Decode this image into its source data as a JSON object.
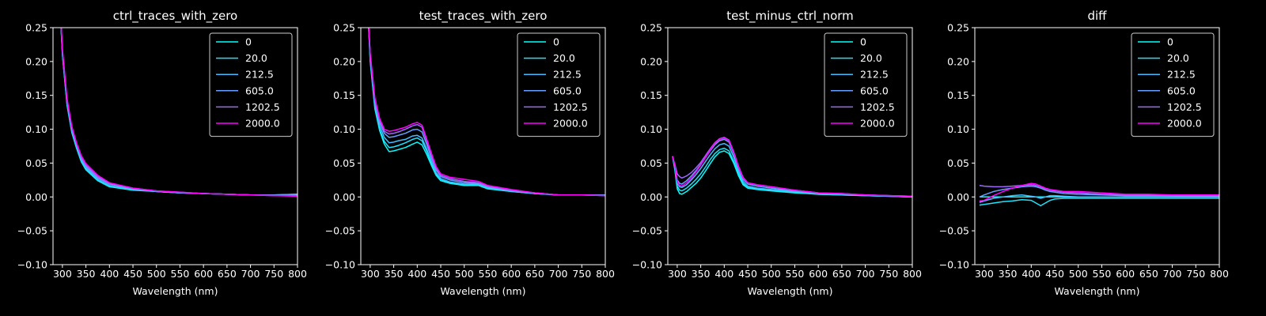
{
  "figure": {
    "background": "#000000",
    "foreground": "#ffffff"
  },
  "chart_data": [
    {
      "type": "line",
      "title": "ctrl_traces_with_zero",
      "xlabel": "Wavelength (nm)",
      "ylabel": "",
      "xlim": [
        280,
        800
      ],
      "ylim": [
        -0.1,
        0.25
      ],
      "xticks": [
        300,
        350,
        400,
        450,
        500,
        550,
        600,
        650,
        700,
        750,
        800
      ],
      "yticks": [
        -0.1,
        -0.05,
        0.0,
        0.05,
        0.1,
        0.15,
        0.2,
        0.25
      ],
      "ytick_labels": [
        "−0.10",
        "−0.05",
        "0.00",
        "0.05",
        "0.10",
        "0.15",
        "0.20",
        "0.25"
      ],
      "legend_position": "top-right",
      "grid": false,
      "x": [
        290,
        300,
        310,
        320,
        330,
        340,
        350,
        375,
        400,
        450,
        500,
        550,
        600,
        650,
        700,
        750,
        800
      ],
      "series": [
        {
          "name": "0",
          "color": "#00ffff",
          "values": [
            0.35,
            0.21,
            0.135,
            0.095,
            0.072,
            0.052,
            0.04,
            0.024,
            0.015,
            0.01,
            0.008,
            0.006,
            0.005,
            0.004,
            0.003,
            0.003,
            0.004
          ]
        },
        {
          "name": "20.0",
          "color": "#1ae5ff",
          "values": [
            0.35,
            0.21,
            0.136,
            0.096,
            0.073,
            0.053,
            0.041,
            0.025,
            0.016,
            0.011,
            0.008,
            0.006,
            0.005,
            0.004,
            0.003,
            0.003,
            0.004
          ]
        },
        {
          "name": "212.5",
          "color": "#44bbff",
          "values": [
            0.35,
            0.212,
            0.138,
            0.098,
            0.075,
            0.055,
            0.043,
            0.026,
            0.017,
            0.011,
            0.008,
            0.006,
            0.005,
            0.004,
            0.003,
            0.003,
            0.003
          ]
        },
        {
          "name": "605.0",
          "color": "#66a0ff",
          "values": [
            0.35,
            0.214,
            0.14,
            0.1,
            0.077,
            0.057,
            0.045,
            0.028,
            0.019,
            0.012,
            0.009,
            0.006,
            0.005,
            0.004,
            0.003,
            0.003,
            0.003
          ]
        },
        {
          "name": "1202.5",
          "color": "#a066ff",
          "values": [
            0.35,
            0.216,
            0.142,
            0.102,
            0.079,
            0.059,
            0.047,
            0.03,
            0.02,
            0.013,
            0.009,
            0.007,
            0.005,
            0.004,
            0.003,
            0.002,
            0.002
          ]
        },
        {
          "name": "2000.0",
          "color": "#ff00ff",
          "values": [
            0.35,
            0.218,
            0.145,
            0.104,
            0.08,
            0.061,
            0.049,
            0.032,
            0.021,
            0.013,
            0.009,
            0.007,
            0.005,
            0.004,
            0.003,
            0.002,
            0.001
          ]
        }
      ]
    },
    {
      "type": "line",
      "title": "test_traces_with_zero",
      "xlabel": "Wavelength (nm)",
      "ylabel": "",
      "xlim": [
        280,
        800
      ],
      "ylim": [
        -0.1,
        0.25
      ],
      "xticks": [
        300,
        350,
        400,
        450,
        500,
        550,
        600,
        650,
        700,
        750,
        800
      ],
      "yticks": [
        -0.1,
        -0.05,
        0.0,
        0.05,
        0.1,
        0.15,
        0.2,
        0.25
      ],
      "ytick_labels": [
        "−0.10",
        "−0.05",
        "0.00",
        "0.05",
        "0.10",
        "0.15",
        "0.20",
        "0.25"
      ],
      "legend_position": "top-right",
      "grid": false,
      "x": [
        290,
        300,
        310,
        320,
        330,
        340,
        350,
        360,
        375,
        390,
        400,
        410,
        420,
        430,
        440,
        450,
        470,
        500,
        530,
        550,
        600,
        650,
        700,
        750,
        800
      ],
      "series": [
        {
          "name": "0",
          "color": "#00ffff",
          "values": [
            0.35,
            0.2,
            0.13,
            0.098,
            0.078,
            0.067,
            0.068,
            0.07,
            0.073,
            0.078,
            0.081,
            0.077,
            0.063,
            0.047,
            0.032,
            0.024,
            0.02,
            0.017,
            0.017,
            0.012,
            0.008,
            0.005,
            0.003,
            0.003,
            0.003
          ]
        },
        {
          "name": "20.0",
          "color": "#1ae5ff",
          "values": [
            0.35,
            0.202,
            0.132,
            0.1,
            0.082,
            0.073,
            0.074,
            0.076,
            0.08,
            0.085,
            0.087,
            0.083,
            0.068,
            0.05,
            0.034,
            0.025,
            0.021,
            0.018,
            0.018,
            0.013,
            0.008,
            0.005,
            0.003,
            0.003,
            0.003
          ]
        },
        {
          "name": "212.5",
          "color": "#44bbff",
          "values": [
            0.35,
            0.205,
            0.135,
            0.105,
            0.088,
            0.08,
            0.081,
            0.083,
            0.085,
            0.09,
            0.091,
            0.087,
            0.071,
            0.053,
            0.036,
            0.027,
            0.022,
            0.019,
            0.019,
            0.014,
            0.009,
            0.005,
            0.003,
            0.003,
            0.003
          ]
        },
        {
          "name": "605.0",
          "color": "#66a0ff",
          "values": [
            0.35,
            0.208,
            0.14,
            0.11,
            0.094,
            0.088,
            0.089,
            0.091,
            0.094,
            0.099,
            0.1,
            0.096,
            0.078,
            0.058,
            0.04,
            0.03,
            0.025,
            0.021,
            0.02,
            0.015,
            0.009,
            0.006,
            0.003,
            0.003,
            0.002
          ]
        },
        {
          "name": "1202.5",
          "color": "#a066ff",
          "values": [
            0.35,
            0.21,
            0.143,
            0.113,
            0.097,
            0.093,
            0.094,
            0.096,
            0.1,
            0.105,
            0.107,
            0.103,
            0.083,
            0.062,
            0.043,
            0.032,
            0.027,
            0.023,
            0.021,
            0.016,
            0.01,
            0.006,
            0.003,
            0.003,
            0.002
          ]
        },
        {
          "name": "2000.0",
          "color": "#ff00ff",
          "values": [
            0.35,
            0.212,
            0.146,
            0.116,
            0.1,
            0.097,
            0.098,
            0.1,
            0.103,
            0.108,
            0.11,
            0.106,
            0.086,
            0.065,
            0.045,
            0.034,
            0.029,
            0.026,
            0.023,
            0.017,
            0.011,
            0.006,
            0.003,
            0.003,
            0.002
          ]
        }
      ]
    },
    {
      "type": "line",
      "title": "test_minus_ctrl_norm",
      "xlabel": "Wavelength (nm)",
      "ylabel": "",
      "xlim": [
        280,
        800
      ],
      "ylim": [
        -0.1,
        0.25
      ],
      "xticks": [
        300,
        350,
        400,
        450,
        500,
        550,
        600,
        650,
        700,
        750,
        800
      ],
      "yticks": [
        -0.1,
        -0.05,
        0.0,
        0.05,
        0.1,
        0.15,
        0.2,
        0.25
      ],
      "ytick_labels": [
        "−0.10",
        "−0.05",
        "0.00",
        "0.05",
        "0.10",
        "0.15",
        "0.20",
        "0.25"
      ],
      "legend_position": "top-right",
      "grid": false,
      "x": [
        290,
        295,
        300,
        305,
        310,
        320,
        330,
        340,
        350,
        360,
        370,
        380,
        390,
        400,
        410,
        420,
        430,
        440,
        450,
        470,
        500,
        550,
        600,
        650,
        700,
        750,
        800
      ],
      "series": [
        {
          "name": "0",
          "color": "#00ffff",
          "values": [
            0.06,
            0.04,
            0.012,
            0.005,
            0.004,
            0.008,
            0.014,
            0.02,
            0.028,
            0.038,
            0.049,
            0.059,
            0.066,
            0.068,
            0.064,
            0.05,
            0.032,
            0.018,
            0.013,
            0.011,
            0.009,
            0.006,
            0.004,
            0.003,
            0.002,
            0.001,
            0.0
          ]
        },
        {
          "name": "20.0",
          "color": "#1ae5ff",
          "values": [
            0.06,
            0.042,
            0.016,
            0.01,
            0.009,
            0.013,
            0.019,
            0.026,
            0.034,
            0.044,
            0.055,
            0.064,
            0.07,
            0.072,
            0.068,
            0.053,
            0.035,
            0.02,
            0.014,
            0.012,
            0.01,
            0.007,
            0.004,
            0.003,
            0.002,
            0.001,
            0.0
          ]
        },
        {
          "name": "212.5",
          "color": "#44bbff",
          "values": [
            0.06,
            0.044,
            0.02,
            0.015,
            0.014,
            0.018,
            0.025,
            0.033,
            0.042,
            0.052,
            0.062,
            0.071,
            0.077,
            0.079,
            0.075,
            0.059,
            0.039,
            0.023,
            0.016,
            0.013,
            0.011,
            0.008,
            0.005,
            0.004,
            0.002,
            0.001,
            0.0
          ]
        },
        {
          "name": "605.0",
          "color": "#66a0ff",
          "values": [
            0.06,
            0.046,
            0.025,
            0.02,
            0.019,
            0.024,
            0.031,
            0.039,
            0.048,
            0.058,
            0.068,
            0.077,
            0.083,
            0.085,
            0.081,
            0.064,
            0.043,
            0.026,
            0.019,
            0.016,
            0.013,
            0.009,
            0.006,
            0.004,
            0.003,
            0.002,
            0.001
          ]
        },
        {
          "name": "1202.5",
          "color": "#a066ff",
          "values": [
            0.06,
            0.048,
            0.034,
            0.03,
            0.028,
            0.031,
            0.036,
            0.043,
            0.051,
            0.061,
            0.071,
            0.08,
            0.086,
            0.088,
            0.084,
            0.067,
            0.046,
            0.029,
            0.021,
            0.018,
            0.015,
            0.01,
            0.006,
            0.005,
            0.003,
            0.002,
            0.001
          ]
        },
        {
          "name": "2000.0",
          "color": "#ff00ff",
          "values": [
            0.06,
            0.047,
            0.022,
            0.017,
            0.016,
            0.021,
            0.028,
            0.037,
            0.047,
            0.058,
            0.069,
            0.079,
            0.085,
            0.087,
            0.083,
            0.066,
            0.045,
            0.028,
            0.021,
            0.018,
            0.015,
            0.01,
            0.006,
            0.005,
            0.003,
            0.002,
            0.001
          ]
        }
      ]
    },
    {
      "type": "line",
      "title": "diff",
      "xlabel": "Wavelength (nm)",
      "ylabel": "",
      "xlim": [
        280,
        800
      ],
      "ylim": [
        -0.1,
        0.25
      ],
      "xticks": [
        300,
        350,
        400,
        450,
        500,
        550,
        600,
        650,
        700,
        750,
        800
      ],
      "yticks": [
        -0.1,
        -0.05,
        0.0,
        0.05,
        0.1,
        0.15,
        0.2,
        0.25
      ],
      "ytick_labels": [
        "−0.10",
        "−0.05",
        "0.00",
        "0.05",
        "0.10",
        "0.15",
        "0.20",
        "0.25"
      ],
      "legend_position": "top-right",
      "grid": false,
      "x": [
        290,
        300,
        320,
        340,
        360,
        380,
        400,
        410,
        420,
        430,
        440,
        450,
        470,
        500,
        550,
        600,
        650,
        700,
        750,
        800
      ],
      "series": [
        {
          "name": "0",
          "color": "#00ffff",
          "values": [
            0.0,
            0.0,
            0.0,
            0.0,
            0.0,
            0.0,
            0.0,
            0.0,
            0.0,
            0.0,
            0.0,
            0.0,
            0.0,
            0.0,
            0.0,
            0.0,
            0.0,
            0.0,
            0.0,
            0.0
          ]
        },
        {
          "name": "20.0",
          "color": "#1ae5ff",
          "values": [
            -0.012,
            -0.011,
            -0.009,
            -0.007,
            -0.006,
            -0.004,
            -0.005,
            -0.009,
            -0.013,
            -0.009,
            -0.005,
            -0.003,
            -0.002,
            -0.002,
            -0.002,
            -0.002,
            -0.002,
            -0.002,
            -0.002,
            -0.002
          ]
        },
        {
          "name": "212.5",
          "color": "#44bbff",
          "values": [
            -0.008,
            -0.006,
            -0.002,
            0.0,
            0.002,
            0.003,
            0.001,
            0.0,
            -0.002,
            0.0,
            0.002,
            0.002,
            0.001,
            0.0,
            0.0,
            0.0,
            0.0,
            0.0,
            0.0,
            0.0
          ]
        },
        {
          "name": "605.0",
          "color": "#66a0ff",
          "values": [
            0.0,
            0.003,
            0.008,
            0.011,
            0.013,
            0.015,
            0.016,
            0.015,
            0.013,
            0.01,
            0.008,
            0.007,
            0.005,
            0.004,
            0.003,
            0.002,
            0.002,
            0.002,
            0.001,
            0.001
          ]
        },
        {
          "name": "1202.5",
          "color": "#a066ff",
          "values": [
            0.017,
            0.016,
            0.015,
            0.015,
            0.016,
            0.017,
            0.018,
            0.017,
            0.015,
            0.012,
            0.01,
            0.009,
            0.007,
            0.006,
            0.004,
            0.003,
            0.003,
            0.002,
            0.002,
            0.002
          ]
        },
        {
          "name": "2000.0",
          "color": "#ff00ff",
          "values": [
            -0.006,
            -0.005,
            0.002,
            0.008,
            0.013,
            0.017,
            0.02,
            0.019,
            0.016,
            0.013,
            0.011,
            0.01,
            0.008,
            0.008,
            0.006,
            0.004,
            0.004,
            0.003,
            0.003,
            0.003
          ]
        }
      ]
    }
  ]
}
